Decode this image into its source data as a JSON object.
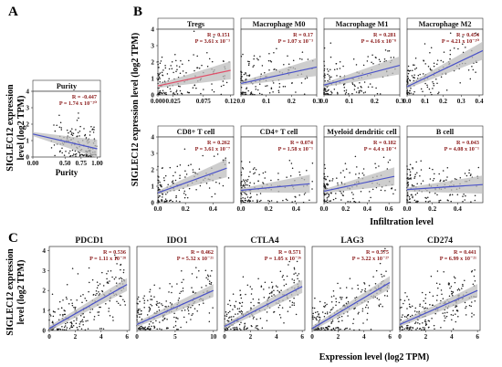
{
  "figure": {
    "panel_labels": [
      "A",
      "B",
      "C"
    ],
    "y_axis_label_lines": [
      "SIGLEC12 expression",
      "level (log2 TPM)"
    ],
    "y_axis_label_b": "SIGLEC12 expression level (log2 TPM)",
    "x_label_b": "Infiltration level",
    "x_label_c": "Expression level (log2 TPM)"
  },
  "chart_data": [
    {
      "panel": "A",
      "type": "scatter",
      "title": "Purity",
      "xlabel": "Purity",
      "xlim": [
        0,
        1.05
      ],
      "ylim": [
        0,
        4
      ],
      "xticks": [
        "0.00",
        "0.50",
        "0.75",
        "1.00"
      ],
      "xtick_values": [
        0,
        0.5,
        0.75,
        1.0
      ],
      "yticks": [
        "0",
        "1",
        "2",
        "3",
        "4"
      ],
      "R": "R = -0.447",
      "P": "P = 1.74 x 10⁻²⁰",
      "fit": {
        "x": [
          0.0,
          1.0
        ],
        "y": [
          1.4,
          0.5
        ]
      }
    },
    {
      "panel": "B",
      "type": "scatter",
      "title": "Tregs",
      "xlim": [
        0,
        0.125
      ],
      "ylim": [
        0,
        4
      ],
      "xticks": [
        "0.000",
        "0.025",
        "0.075",
        "0.12"
      ],
      "xtick_values": [
        0,
        0.025,
        0.075,
        0.12
      ],
      "yticks": [
        "0",
        "1",
        "2",
        "3",
        "4"
      ],
      "R": "R = 0.151",
      "P": "P = 3.61 x 10⁻³",
      "fit": {
        "x": [
          0.0,
          0.12
        ],
        "y": [
          0.55,
          1.5
        ]
      }
    },
    {
      "panel": "B",
      "type": "scatter",
      "title": "Macrophage M0",
      "xlim": [
        0,
        0.3
      ],
      "ylim": [
        0,
        4
      ],
      "xticks": [
        "0.0",
        "0.1",
        "0.2",
        "0.3"
      ],
      "xtick_values": [
        0,
        0.1,
        0.2,
        0.3
      ],
      "R": "R = 0.17",
      "P": "P = 1.07 x 10⁻³",
      "fit": {
        "x": [
          0.0,
          0.3
        ],
        "y": [
          0.7,
          1.7
        ]
      }
    },
    {
      "panel": "B",
      "type": "scatter",
      "title": "Macrophage M1",
      "xlim": [
        0,
        0.3
      ],
      "ylim": [
        0,
        4
      ],
      "xticks": [
        "0.0",
        "0.1",
        "0.2",
        "0.3"
      ],
      "xtick_values": [
        0,
        0.1,
        0.2,
        0.3
      ],
      "R": "R = 0.281",
      "P": "P = 4.16 x 10⁻⁸",
      "fit": {
        "x": [
          0.0,
          0.3
        ],
        "y": [
          0.6,
          1.8
        ]
      }
    },
    {
      "panel": "B",
      "type": "scatter",
      "title": "Macrophage M2",
      "xlim": [
        0,
        0.42
      ],
      "ylim": [
        0,
        4
      ],
      "xticks": [
        "0.0",
        "0.1",
        "0.2",
        "0.3",
        "0.4"
      ],
      "xtick_values": [
        0,
        0.1,
        0.2,
        0.3,
        0.4
      ],
      "R": "R = 0.454",
      "P": "P = 4.21 x 10⁻²⁰",
      "fit": {
        "x": [
          0.0,
          0.42
        ],
        "y": [
          0.5,
          2.7
        ]
      }
    },
    {
      "panel": "B",
      "type": "scatter",
      "title": "CD8+ T cell",
      "xlim": [
        0,
        0.55
      ],
      "ylim": [
        0,
        4
      ],
      "xticks": [
        "0.0",
        "0.2",
        "0.4"
      ],
      "xtick_values": [
        0,
        0.2,
        0.4
      ],
      "yticks": [
        "0",
        "1",
        "2",
        "3",
        "4"
      ],
      "R": "R = 0.262",
      "P": "P = 3.61 x 10⁻⁷",
      "fit": {
        "x": [
          0.0,
          0.5
        ],
        "y": [
          0.6,
          2.1
        ]
      }
    },
    {
      "panel": "B",
      "type": "scatter",
      "title": "CD4+ T cell",
      "xlim": [
        0,
        0.55
      ],
      "ylim": [
        0,
        4
      ],
      "xticks": [
        "0.0",
        "0.2",
        "0.4"
      ],
      "xtick_values": [
        0,
        0.2,
        0.4
      ],
      "R": "R = 0.074",
      "P": "P = 1.58 x 10⁻¹",
      "fit": {
        "x": [
          0.0,
          0.5
        ],
        "y": [
          0.75,
          1.15
        ]
      }
    },
    {
      "panel": "B",
      "type": "scatter",
      "title": "Myeloid dendritic cell",
      "xlim": [
        0,
        0.7
      ],
      "ylim": [
        0,
        4
      ],
      "xticks": [
        "0.0",
        "0.2",
        "0.4",
        "0.6"
      ],
      "xtick_values": [
        0,
        0.2,
        0.4,
        0.6
      ],
      "R": "R = 0.182",
      "P": "P = 4.4 x 10⁻⁴",
      "fit": {
        "x": [
          0.0,
          0.65
        ],
        "y": [
          0.7,
          1.6
        ]
      }
    },
    {
      "panel": "B",
      "type": "scatter",
      "title": "B cell",
      "xlim": [
        0,
        0.6
      ],
      "ylim": [
        0,
        4
      ],
      "xticks": [
        "0.0",
        "0.2",
        "0.4"
      ],
      "xtick_values": [
        0,
        0.2,
        0.4
      ],
      "R": "R = 0.043",
      "P": "P = 4.08 x 10⁻¹",
      "fit": {
        "x": [
          0.0,
          0.6
        ],
        "y": [
          0.8,
          1.1
        ]
      }
    },
    {
      "panel": "C",
      "type": "scatter",
      "title": "PDCD1",
      "xlim": [
        0,
        6.2
      ],
      "ylim": [
        0,
        4.2
      ],
      "xticks": [
        "0",
        "2",
        "4",
        "6"
      ],
      "xtick_values": [
        0,
        2,
        4,
        6
      ],
      "yticks": [
        "0",
        "1",
        "2",
        "3",
        "4"
      ],
      "R": "R = 0.536",
      "P": "P = 1.11 x 10⁻²⁸",
      "fit": {
        "x": [
          0,
          6
        ],
        "y": [
          0.1,
          2.3
        ]
      }
    },
    {
      "panel": "C",
      "type": "scatter",
      "title": "IDO1",
      "xlim": [
        0,
        10.5
      ],
      "ylim": [
        0,
        4.2
      ],
      "xticks": [
        "0",
        "5",
        "10"
      ],
      "xtick_values": [
        0,
        5,
        10
      ],
      "R": "R = 0.462",
      "P": "P = 5.32 x 10⁻²¹",
      "fit": {
        "x": [
          0,
          10
        ],
        "y": [
          0.3,
          2.0
        ]
      }
    },
    {
      "panel": "C",
      "type": "scatter",
      "title": "CTLA4",
      "xlim": [
        0,
        6.2
      ],
      "ylim": [
        0,
        4.2
      ],
      "xticks": [
        "0",
        "2",
        "4",
        "6"
      ],
      "xtick_values": [
        0,
        2,
        4,
        6
      ],
      "R": "R = 0.571",
      "P": "P = 1.05 x 10⁻²⁶",
      "fit": {
        "x": [
          0,
          6
        ],
        "y": [
          0.2,
          2.2
        ]
      }
    },
    {
      "panel": "C",
      "type": "scatter",
      "title": "LAG3",
      "xlim": [
        0,
        6.2
      ],
      "ylim": [
        0,
        4.2
      ],
      "xticks": [
        "0",
        "2",
        "4",
        "6"
      ],
      "xtick_values": [
        0,
        2,
        4,
        6
      ],
      "R": "R = 0.575",
      "P": "P = 3.22 x 10⁻²⁷",
      "fit": {
        "x": [
          0,
          6
        ],
        "y": [
          0.1,
          2.4
        ]
      }
    },
    {
      "panel": "C",
      "type": "scatter",
      "title": "CD274",
      "xlim": [
        0,
        6.2
      ],
      "ylim": [
        0,
        4.2
      ],
      "xticks": [
        "0",
        "2",
        "4",
        "6"
      ],
      "xtick_values": [
        0,
        2,
        4,
        6
      ],
      "R": "R = 0.441",
      "P": "P = 6.99 x 10⁻²¹",
      "fit": {
        "x": [
          0,
          6
        ],
        "y": [
          0.3,
          2.0
        ]
      }
    }
  ]
}
